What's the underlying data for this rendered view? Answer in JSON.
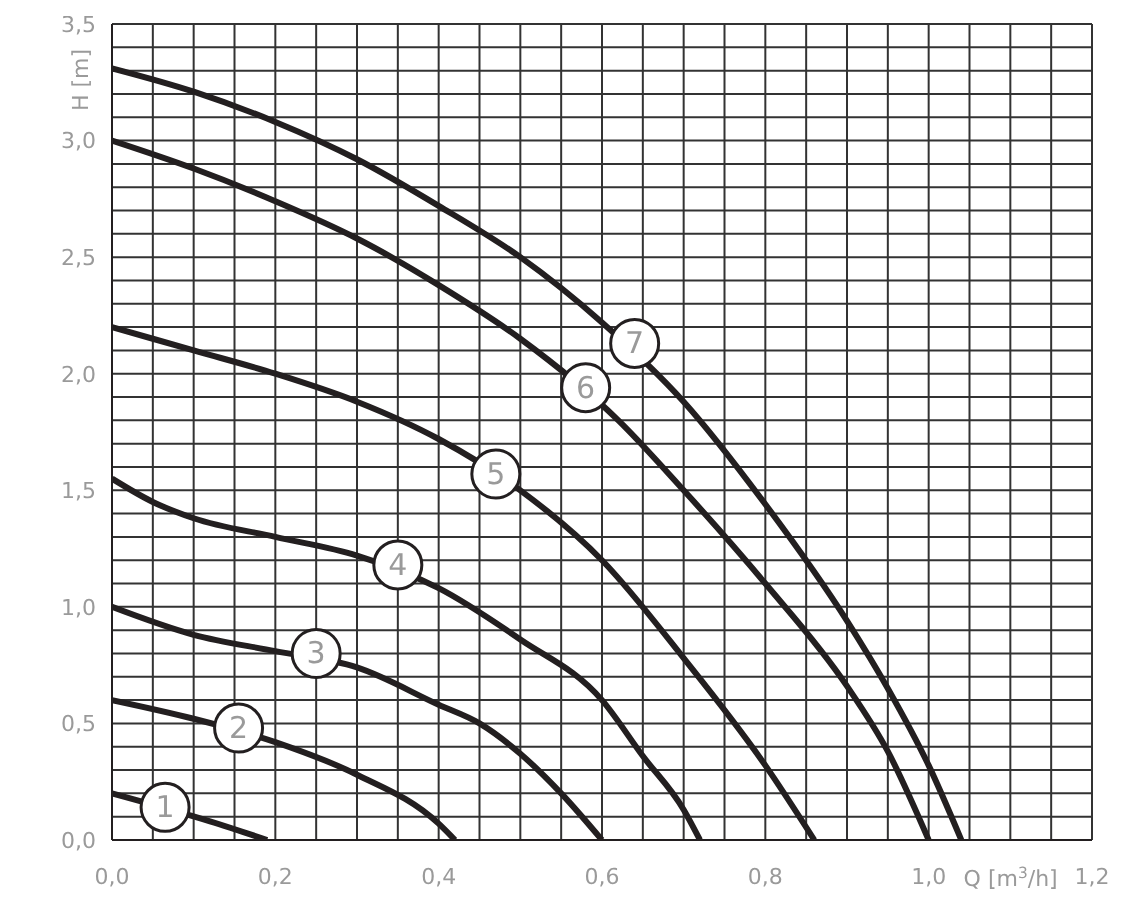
{
  "chart_data": {
    "type": "line",
    "xlabel": "Q [m$^{3}$/h]",
    "ylabel": "H [m]",
    "xlim": [
      0,
      1.2
    ],
    "ylim": [
      0,
      3.5
    ],
    "xticks": [
      {
        "value": 0,
        "label": "0,0"
      },
      {
        "value": 0.05,
        "label": null
      },
      {
        "value": 0.1,
        "label": null
      },
      {
        "value": 0.15,
        "label": null
      },
      {
        "value": 0.2,
        "label": "0,2"
      },
      {
        "value": 0.25,
        "label": null
      },
      {
        "value": 0.3,
        "label": null
      },
      {
        "value": 0.35,
        "label": null
      },
      {
        "value": 0.4,
        "label": "0,4"
      },
      {
        "value": 0.45,
        "label": null
      },
      {
        "value": 0.5,
        "label": null
      },
      {
        "value": 0.55,
        "label": null
      },
      {
        "value": 0.6,
        "label": "0,6"
      },
      {
        "value": 0.65,
        "label": null
      },
      {
        "value": 0.7,
        "label": null
      },
      {
        "value": 0.75,
        "label": null
      },
      {
        "value": 0.8,
        "label": "0,8"
      },
      {
        "value": 0.85,
        "label": null
      },
      {
        "value": 0.9,
        "label": null
      },
      {
        "value": 0.95,
        "label": null
      },
      {
        "value": 1.0,
        "label": "1,0"
      },
      {
        "value": 1.05,
        "label": null
      },
      {
        "value": 1.1,
        "label": null
      },
      {
        "value": 1.15,
        "label": null
      },
      {
        "value": 1.2,
        "label": "1,2"
      }
    ],
    "yticks": [
      {
        "value": 0,
        "label": "0,0"
      },
      {
        "value": 0.1,
        "label": null
      },
      {
        "value": 0.2,
        "label": null
      },
      {
        "value": 0.3,
        "label": null
      },
      {
        "value": 0.4,
        "label": null
      },
      {
        "value": 0.5,
        "label": "0,5"
      },
      {
        "value": 0.6,
        "label": null
      },
      {
        "value": 0.7,
        "label": null
      },
      {
        "value": 0.8,
        "label": null
      },
      {
        "value": 0.9,
        "label": null
      },
      {
        "value": 1.0,
        "label": "1,0"
      },
      {
        "value": 1.1,
        "label": null
      },
      {
        "value": 1.2,
        "label": null
      },
      {
        "value": 1.3,
        "label": null
      },
      {
        "value": 1.4,
        "label": null
      },
      {
        "value": 1.5,
        "label": "1,5"
      },
      {
        "value": 1.6,
        "label": null
      },
      {
        "value": 1.7,
        "label": null
      },
      {
        "value": 1.8,
        "label": null
      },
      {
        "value": 1.9,
        "label": null
      },
      {
        "value": 2.0,
        "label": "2,0"
      },
      {
        "value": 2.1,
        "label": null
      },
      {
        "value": 2.2,
        "label": null
      },
      {
        "value": 2.3,
        "label": null
      },
      {
        "value": 2.4,
        "label": null
      },
      {
        "value": 2.5,
        "label": "2,5"
      },
      {
        "value": 2.6,
        "label": null
      },
      {
        "value": 2.7,
        "label": null
      },
      {
        "value": 2.8,
        "label": null
      },
      {
        "value": 2.9,
        "label": null
      },
      {
        "value": 3.0,
        "label": "3,0"
      },
      {
        "value": 3.1,
        "label": null
      },
      {
        "value": 3.2,
        "label": null
      },
      {
        "value": 3.3,
        "label": null
      },
      {
        "value": 3.4,
        "label": null
      },
      {
        "value": 3.5,
        "label": "3,5"
      }
    ],
    "grid": true,
    "marker": "none",
    "line_style": "solid",
    "series": [
      {
        "color": "#231f20",
        "x": [
          0,
          0.12,
          0.19
        ],
        "values": [
          0.2,
          0.08,
          0
        ]
      },
      {
        "color": "#231f20",
        "x": [
          0,
          0.1,
          0.2,
          0.3,
          0.4,
          0.42
        ],
        "values": [
          0.6,
          0.52,
          0.42,
          0.28,
          0.07,
          0
        ]
      },
      {
        "color": "#231f20",
        "x": [
          0,
          0.1,
          0.2,
          0.3,
          0.4,
          0.45,
          0.5,
          0.55,
          0.6
        ],
        "values": [
          1.0,
          0.88,
          0.81,
          0.74,
          0.58,
          0.5,
          0.37,
          0.2,
          0
        ]
      },
      {
        "color": "#231f20",
        "x": [
          0,
          0.05,
          0.1,
          0.2,
          0.3,
          0.4,
          0.5,
          0.6,
          0.65,
          0.7,
          0.72
        ],
        "values": [
          1.55,
          1.45,
          1.38,
          1.3,
          1.22,
          1.08,
          0.86,
          0.6,
          0.36,
          0.13,
          0
        ]
      },
      {
        "color": "#231f20",
        "x": [
          0,
          0.1,
          0.2,
          0.3,
          0.4,
          0.5,
          0.6,
          0.7,
          0.8,
          0.86
        ],
        "values": [
          2.2,
          2.1,
          2.0,
          1.88,
          1.72,
          1.5,
          1.2,
          0.78,
          0.32,
          0
        ]
      },
      {
        "color": "#231f20",
        "x": [
          0,
          0.1,
          0.2,
          0.3,
          0.4,
          0.5,
          0.62,
          0.7,
          0.8,
          0.9,
          0.95,
          1.0
        ],
        "values": [
          3.0,
          2.88,
          2.74,
          2.58,
          2.38,
          2.15,
          1.8,
          1.5,
          1.1,
          0.66,
          0.38,
          0
        ]
      },
      {
        "color": "#231f20",
        "x": [
          0,
          0.1,
          0.2,
          0.3,
          0.4,
          0.5,
          0.6,
          0.7,
          0.8,
          0.9,
          0.95,
          1.0,
          1.04
        ],
        "values": [
          3.31,
          3.21,
          3.08,
          2.92,
          2.72,
          2.5,
          2.22,
          1.88,
          1.44,
          0.94,
          0.65,
          0.32,
          0
        ]
      }
    ],
    "annotations": [
      {
        "text": "1",
        "x": 0.065,
        "y": 0.14
      },
      {
        "text": "2",
        "x": 0.155,
        "y": 0.48
      },
      {
        "text": "3",
        "x": 0.25,
        "y": 0.8
      },
      {
        "text": "4",
        "x": 0.35,
        "y": 1.18
      },
      {
        "text": "5",
        "x": 0.47,
        "y": 1.57
      },
      {
        "text": "6",
        "x": 0.58,
        "y": 1.94
      },
      {
        "text": "7",
        "x": 0.64,
        "y": 2.13
      }
    ]
  }
}
